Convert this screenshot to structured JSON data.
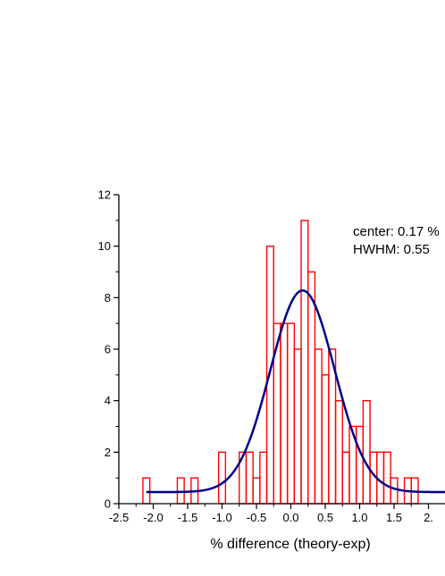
{
  "chart_data": {
    "type": "bar",
    "xlabel": "% difference (theory-exp)",
    "ylabel": "",
    "xlim": [
      -2.5,
      2.5
    ],
    "ylim": [
      0,
      12
    ],
    "x_ticks": [
      "-2.5",
      "-2.0",
      "-1.5",
      "-1.0",
      "-0.5",
      "0.0",
      "0.5",
      "1.0",
      "1.5",
      "2."
    ],
    "y_ticks": [
      "0",
      "2",
      "4",
      "6",
      "8",
      "10",
      "12"
    ],
    "grid": false,
    "bin_width": 0.1,
    "bins": [
      {
        "x": -2.1,
        "count": 1
      },
      {
        "x": -1.6,
        "count": 1
      },
      {
        "x": -1.4,
        "count": 1
      },
      {
        "x": -1.0,
        "count": 2
      },
      {
        "x": -0.7,
        "count": 2
      },
      {
        "x": -0.6,
        "count": 2
      },
      {
        "x": -0.5,
        "count": 1
      },
      {
        "x": -0.4,
        "count": 2
      },
      {
        "x": -0.3,
        "count": 10
      },
      {
        "x": -0.2,
        "count": 7
      },
      {
        "x": -0.1,
        "count": 7
      },
      {
        "x": 0.0,
        "count": 7
      },
      {
        "x": 0.1,
        "count": 6
      },
      {
        "x": 0.2,
        "count": 11
      },
      {
        "x": 0.3,
        "count": 9
      },
      {
        "x": 0.4,
        "count": 6
      },
      {
        "x": 0.5,
        "count": 5
      },
      {
        "x": 0.6,
        "count": 6
      },
      {
        "x": 0.7,
        "count": 4
      },
      {
        "x": 0.8,
        "count": 2
      },
      {
        "x": 0.9,
        "count": 3
      },
      {
        "x": 1.0,
        "count": 3
      },
      {
        "x": 1.1,
        "count": 4
      },
      {
        "x": 1.2,
        "count": 2
      },
      {
        "x": 1.3,
        "count": 2
      },
      {
        "x": 1.4,
        "count": 2
      },
      {
        "x": 1.5,
        "count": 1
      },
      {
        "x": 1.7,
        "count": 1
      },
      {
        "x": 1.8,
        "count": 1
      }
    ],
    "fit": {
      "type": "gaussian",
      "center": 0.17,
      "hwhm": 0.55,
      "baseline": 0.45,
      "amplitude": 7.83,
      "x_range": [
        -2.1,
        2.5
      ]
    },
    "annotations": [
      "center: 0.17 %",
      "HWHM: 0.55"
    ],
    "colors": {
      "bars": "#ff0000",
      "fit": "#00008b",
      "axis": "#000000"
    }
  }
}
